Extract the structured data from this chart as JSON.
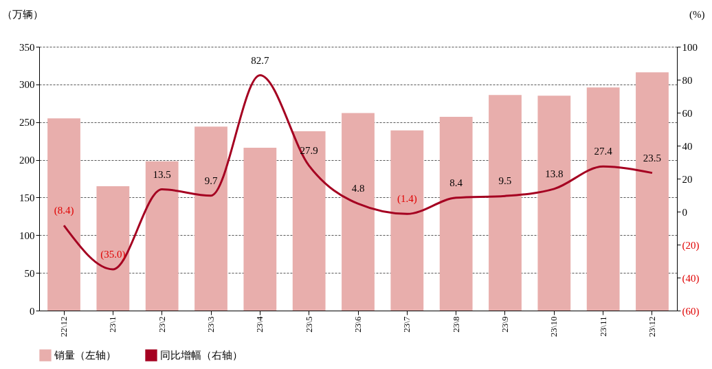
{
  "chart_data": {
    "type": "bar",
    "xlabel": null,
    "ylabel": "（万辆）",
    "y2label": "(%)",
    "categories": [
      "22\\12",
      "23\\1",
      "23\\2",
      "23\\3",
      "23\\4",
      "23\\5",
      "23\\6",
      "23\\7",
      "23\\8",
      "23\\9",
      "23\\10",
      "23\\11",
      "23\\12"
    ],
    "series": [
      {
        "name": "销量（左轴）",
        "color": "#e8aeac",
        "values": [
          255,
          165,
          198,
          244,
          216,
          238,
          262,
          239,
          257,
          286,
          285,
          296,
          316
        ]
      },
      {
        "name": "同比增幅（右轴）",
        "type": "line",
        "axis": "y2",
        "color": "#a50021",
        "values": [
          -8.4,
          -35.0,
          13.5,
          9.7,
          82.7,
          27.9,
          4.8,
          -1.4,
          8.4,
          9.5,
          13.8,
          27.4,
          23.5
        ],
        "value_labels": [
          "(8.4)",
          "(35.0)",
          "13.5",
          "9.7",
          "82.7",
          "27.9",
          "4.8",
          "(1.4)",
          "8.4",
          "9.5",
          "13.8",
          "27.4",
          "23.5"
        ]
      }
    ],
    "ylim": [
      0,
      350
    ],
    "yticks": [
      0,
      50,
      100,
      150,
      200,
      250,
      300,
      350
    ],
    "y2lim": [
      -60,
      100
    ],
    "y2ticks": [
      {
        "value": -60,
        "label": "(60)"
      },
      {
        "value": -40,
        "label": "(40)"
      },
      {
        "value": -20,
        "label": "(20)"
      },
      0,
      20,
      40,
      60,
      80,
      100
    ],
    "grid": "y",
    "legend": "bottom"
  }
}
